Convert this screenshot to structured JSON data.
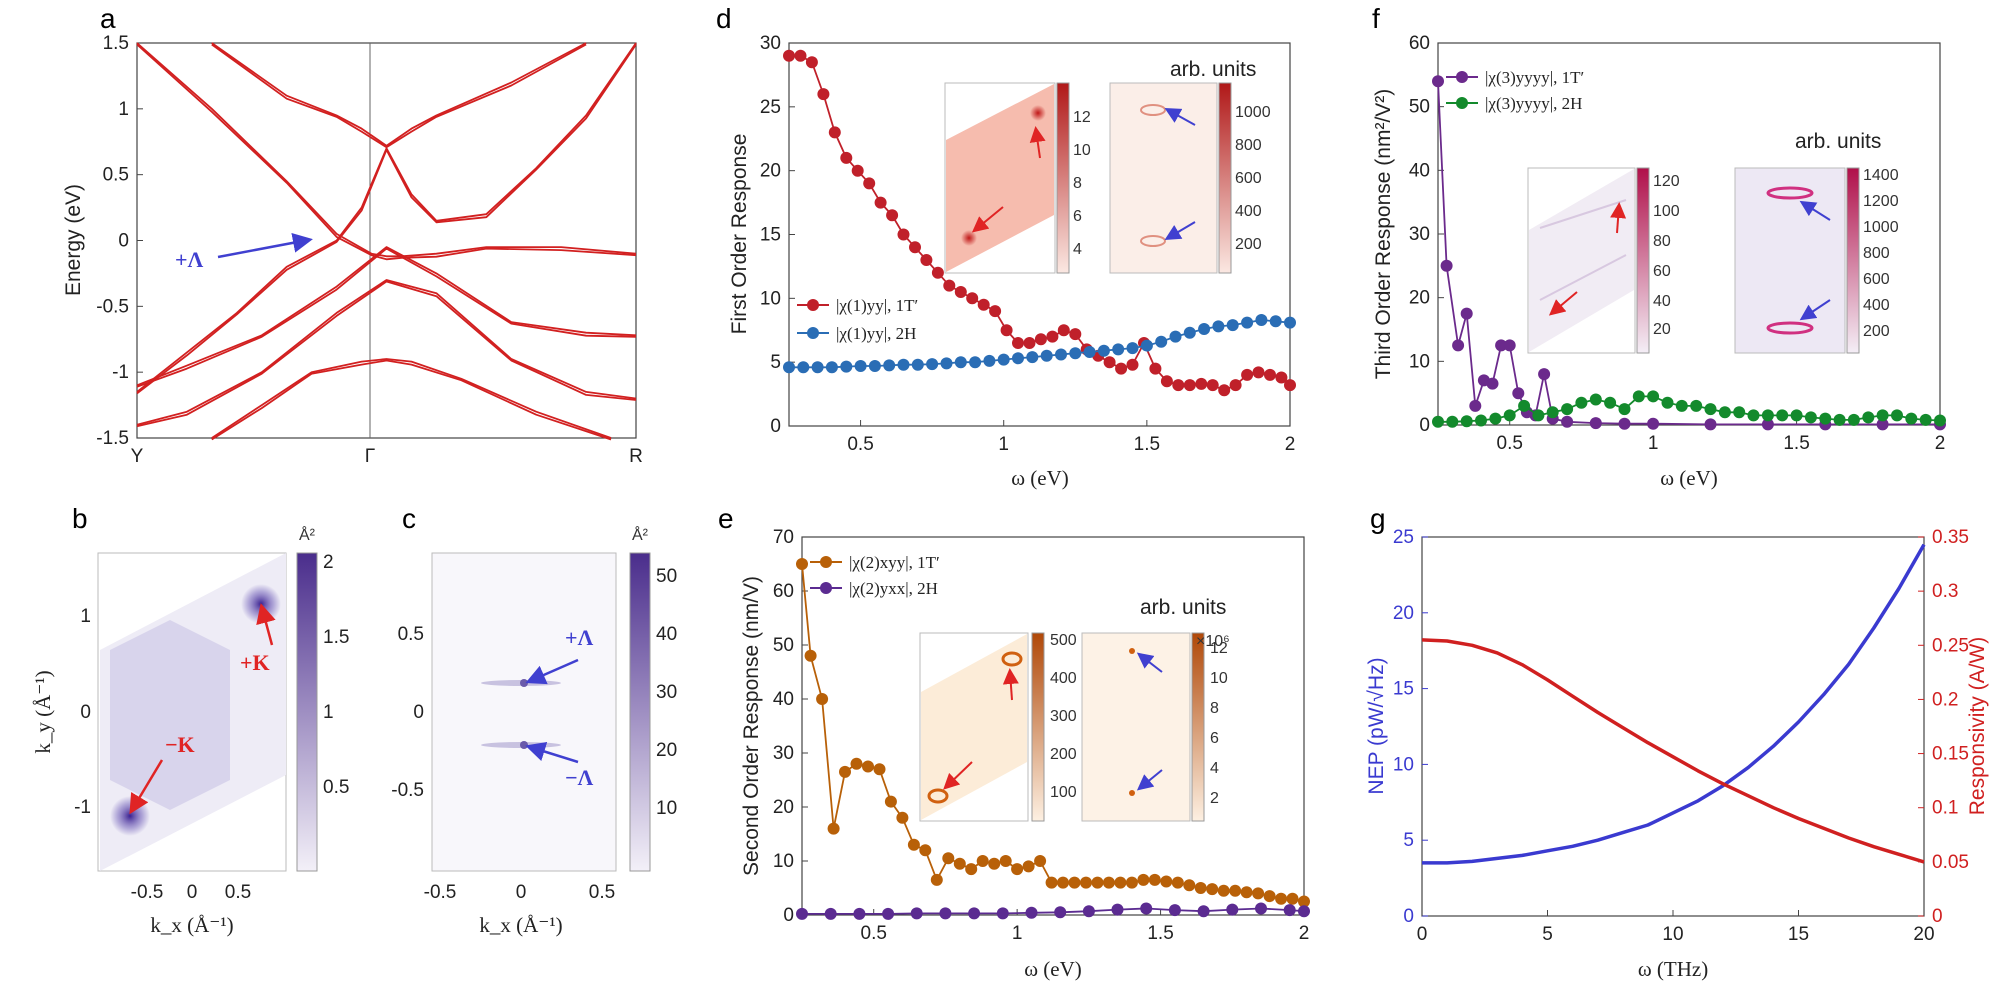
{
  "chart_data": [
    {
      "id": "a",
      "type": "line",
      "panel_label": "a",
      "ylabel": "Energy (eV)",
      "ylim": [
        -1.5,
        1.5
      ],
      "yticks": [
        "1.5",
        "1",
        "0.5",
        "0",
        "-0.5",
        "-1",
        "-1.5"
      ],
      "xtick_labels": [
        "Y",
        "Γ",
        "R"
      ],
      "annotation": "+Λ",
      "series": [
        {
          "name": "band1",
          "x": [
            0.0,
            0.1,
            0.25,
            0.4,
            0.5,
            0.6,
            0.75,
            0.9,
            1.0
          ],
          "y": [
            -1.1,
            -0.95,
            -0.72,
            -0.35,
            -0.05,
            -0.25,
            -0.62,
            -0.7,
            -0.72
          ]
        },
        {
          "name": "band2",
          "x": [
            0.0,
            0.1,
            0.25,
            0.4,
            0.5,
            0.6,
            0.75,
            0.9,
            1.0
          ],
          "y": [
            -1.4,
            -1.3,
            -1.0,
            -0.55,
            -0.3,
            -0.4,
            -0.9,
            -1.15,
            -1.2
          ]
        },
        {
          "name": "band3",
          "x": [
            0.15,
            0.25,
            0.35,
            0.45,
            0.5,
            0.55,
            0.65,
            0.8,
            0.95
          ],
          "y": [
            -1.5,
            -1.25,
            -1.0,
            -0.92,
            -0.9,
            -0.92,
            -1.05,
            -1.3,
            -1.5
          ]
        },
        {
          "name": "band4",
          "x": [
            0.0,
            0.15,
            0.3,
            0.4,
            0.47,
            0.5,
            0.53,
            0.6,
            0.7,
            0.85,
            1.0
          ],
          "y": [
            1.5,
            1.0,
            0.45,
            0.05,
            -0.1,
            -0.12,
            -0.12,
            -0.1,
            -0.05,
            -0.05,
            -0.1
          ]
        },
        {
          "name": "band5",
          "x": [
            0.0,
            0.1,
            0.2,
            0.3,
            0.4,
            0.45,
            0.5,
            0.55,
            0.6,
            0.7,
            0.8,
            0.9,
            1.0
          ],
          "y": [
            -1.15,
            -0.85,
            -0.55,
            -0.2,
            0.0,
            0.25,
            0.7,
            0.35,
            0.15,
            0.2,
            0.55,
            0.95,
            1.5
          ]
        },
        {
          "name": "band6",
          "x": [
            0.15,
            0.3,
            0.4,
            0.45,
            0.5,
            0.55,
            0.6,
            0.75,
            0.9
          ],
          "y": [
            1.5,
            1.1,
            0.95,
            0.85,
            0.72,
            0.85,
            0.95,
            1.2,
            1.5
          ]
        }
      ]
    },
    {
      "id": "b",
      "type": "heatmap",
      "panel_label": "b",
      "xlabel": "k_x (Å⁻¹)",
      "ylabel": "k_y (Å⁻¹)",
      "xticks": [
        "-0.5",
        "0",
        "0.5"
      ],
      "yticks": [
        "1",
        "0",
        "-1"
      ],
      "colorbar_unit": "Å²",
      "colorbar_ticks": [
        "2",
        "1.5",
        "1",
        "0.5"
      ],
      "annotations": [
        "+K",
        "−K"
      ]
    },
    {
      "id": "c",
      "type": "heatmap",
      "panel_label": "c",
      "xlabel": "k_x (Å⁻¹)",
      "xticks": [
        "-0.5",
        "0",
        "0.5"
      ],
      "yticks": [
        "0.5",
        "0",
        "-0.5"
      ],
      "colorbar_unit": "Å²",
      "colorbar_ticks": [
        "50",
        "40",
        "30",
        "20",
        "10"
      ],
      "annotations": [
        "+Λ",
        "−Λ"
      ]
    },
    {
      "id": "d",
      "type": "line",
      "panel_label": "d",
      "xlabel": "ω (eV)",
      "ylabel": "First Order Response",
      "xlim": [
        0.25,
        2.0
      ],
      "ylim": [
        0,
        30
      ],
      "xticks": [
        "0.5",
        "1",
        "1.5",
        "2"
      ],
      "yticks": [
        "30",
        "25",
        "20",
        "15",
        "10",
        "5",
        "0"
      ],
      "inset_header": "arb. units",
      "inset1_ticks": [
        "12",
        "10",
        "8",
        "6",
        "4"
      ],
      "inset2_ticks": [
        "1000",
        "800",
        "600",
        "400",
        "200"
      ],
      "series": [
        {
          "name": "|χ(1)yy|, 1T′",
          "color": "#c0202a",
          "x": [
            0.25,
            0.29,
            0.33,
            0.37,
            0.41,
            0.45,
            0.49,
            0.53,
            0.57,
            0.61,
            0.65,
            0.69,
            0.73,
            0.77,
            0.81,
            0.85,
            0.89,
            0.93,
            0.97,
            1.01,
            1.05,
            1.09,
            1.13,
            1.17,
            1.21,
            1.25,
            1.29,
            1.33,
            1.37,
            1.41,
            1.45,
            1.49,
            1.53,
            1.57,
            1.61,
            1.65,
            1.69,
            1.73,
            1.77,
            1.81,
            1.85,
            1.89,
            1.93,
            1.97,
            2.0
          ],
          "y": [
            29,
            29,
            28.5,
            26,
            23,
            21,
            20,
            19,
            17.5,
            16.5,
            15,
            14,
            13,
            12,
            11,
            10.5,
            10,
            9.5,
            9,
            7.5,
            6.5,
            6.5,
            6.8,
            7,
            7.5,
            7.2,
            6,
            5.5,
            5,
            4.5,
            4.8,
            6.5,
            4.5,
            3.5,
            3.2,
            3.2,
            3.3,
            3.2,
            2.8,
            3.2,
            4,
            4.2,
            4,
            3.8,
            3.2
          ]
        },
        {
          "name": "|χ(1)yy|, 2H",
          "color": "#2a6db5",
          "x": [
            0.25,
            0.3,
            0.35,
            0.4,
            0.45,
            0.5,
            0.55,
            0.6,
            0.65,
            0.7,
            0.75,
            0.8,
            0.85,
            0.9,
            0.95,
            1.0,
            1.05,
            1.1,
            1.15,
            1.2,
            1.25,
            1.3,
            1.35,
            1.4,
            1.45,
            1.5,
            1.55,
            1.6,
            1.65,
            1.7,
            1.75,
            1.8,
            1.85,
            1.9,
            1.95,
            2.0
          ],
          "y": [
            4.6,
            4.6,
            4.6,
            4.6,
            4.65,
            4.7,
            4.7,
            4.75,
            4.8,
            4.8,
            4.85,
            4.9,
            5.0,
            5.0,
            5.1,
            5.2,
            5.3,
            5.4,
            5.5,
            5.6,
            5.7,
            5.8,
            5.9,
            6.0,
            6.1,
            6.3,
            6.6,
            7.0,
            7.3,
            7.6,
            7.8,
            7.9,
            8.1,
            8.3,
            8.2,
            8.1
          ]
        }
      ]
    },
    {
      "id": "e",
      "type": "line",
      "panel_label": "e",
      "xlabel": "ω (eV)",
      "ylabel": "Second Order Response (nm/V)",
      "xlim": [
        0.25,
        2.0
      ],
      "ylim": [
        0,
        70
      ],
      "xticks": [
        "0.5",
        "1",
        "1.5",
        "2"
      ],
      "yticks": [
        "70",
        "60",
        "50",
        "40",
        "30",
        "20",
        "10",
        "0"
      ],
      "inset_header": "arb. units",
      "inset_exponent": "×10⁶",
      "inset1_ticks": [
        "500",
        "400",
        "300",
        "200",
        "100"
      ],
      "inset2_ticks": [
        "12",
        "10",
        "8",
        "6",
        "4",
        "2"
      ],
      "series": [
        {
          "name": "|χ(2)xyy|, 1T′",
          "color": "#b86008",
          "x": [
            0.25,
            0.28,
            0.32,
            0.36,
            0.4,
            0.44,
            0.48,
            0.52,
            0.56,
            0.6,
            0.64,
            0.68,
            0.72,
            0.76,
            0.8,
            0.84,
            0.88,
            0.92,
            0.96,
            1.0,
            1.04,
            1.08,
            1.12,
            1.16,
            1.2,
            1.24,
            1.28,
            1.32,
            1.36,
            1.4,
            1.44,
            1.48,
            1.52,
            1.56,
            1.6,
            1.64,
            1.68,
            1.72,
            1.76,
            1.8,
            1.84,
            1.88,
            1.92,
            1.96,
            2.0
          ],
          "y": [
            65,
            48,
            40,
            16,
            26.5,
            28,
            27.5,
            27,
            21,
            18,
            13,
            12,
            6.5,
            10.5,
            9.5,
            8.5,
            10,
            9.5,
            10,
            8.5,
            9,
            10,
            6,
            6,
            6,
            6,
            6,
            6,
            6,
            6,
            6.5,
            6.5,
            6.2,
            6,
            5.5,
            5,
            4.8,
            4.5,
            4.5,
            4.2,
            4,
            3.5,
            3,
            3,
            2.5
          ]
        },
        {
          "name": "|χ(2)yxx|, 2H",
          "color": "#5b2b91",
          "x": [
            0.25,
            0.35,
            0.45,
            0.55,
            0.65,
            0.75,
            0.85,
            0.95,
            1.05,
            1.15,
            1.25,
            1.35,
            1.45,
            1.55,
            1.65,
            1.75,
            1.85,
            1.95,
            2.0
          ],
          "y": [
            0.2,
            0.2,
            0.2,
            0.2,
            0.3,
            0.3,
            0.3,
            0.3,
            0.4,
            0.5,
            0.7,
            1.0,
            1.2,
            0.9,
            0.7,
            1.0,
            1.2,
            0.9,
            0.7
          ]
        }
      ]
    },
    {
      "id": "f",
      "type": "line",
      "panel_label": "f",
      "xlabel": "ω (eV)",
      "ylabel": "Third Order Response (nm²/V²)",
      "xlim": [
        0.25,
        2.0
      ],
      "ylim": [
        0,
        60
      ],
      "xticks": [
        "0.5",
        "1",
        "1.5",
        "2"
      ],
      "yticks": [
        "60",
        "50",
        "40",
        "30",
        "20",
        "10",
        "0"
      ],
      "inset_header": "arb. units",
      "inset1_ticks": [
        "120",
        "100",
        "80",
        "60",
        "40",
        "20"
      ],
      "inset2_ticks": [
        "1400",
        "1200",
        "1000",
        "800",
        "600",
        "400",
        "200"
      ],
      "series": [
        {
          "name": "|χ(3)yyyy|, 1T′",
          "color": "#6b2a8c",
          "x": [
            0.25,
            0.28,
            0.32,
            0.35,
            0.38,
            0.41,
            0.44,
            0.47,
            0.5,
            0.53,
            0.56,
            0.59,
            0.62,
            0.65,
            0.7,
            0.8,
            0.9,
            1.0,
            1.2,
            1.4,
            1.6,
            1.8,
            2.0
          ],
          "y": [
            54,
            25,
            12.5,
            17.5,
            3,
            7,
            6.5,
            12.5,
            12.5,
            5,
            2,
            1.5,
            8,
            1,
            0.5,
            0.3,
            0.2,
            0.2,
            0.1,
            0.1,
            0.1,
            0.1,
            0.1
          ]
        },
        {
          "name": "|χ(3)yyyy|, 2H",
          "color": "#138a2c",
          "x": [
            0.25,
            0.3,
            0.35,
            0.4,
            0.45,
            0.5,
            0.55,
            0.6,
            0.65,
            0.7,
            0.75,
            0.8,
            0.85,
            0.9,
            0.95,
            1.0,
            1.05,
            1.1,
            1.15,
            1.2,
            1.25,
            1.3,
            1.35,
            1.4,
            1.45,
            1.5,
            1.55,
            1.6,
            1.65,
            1.7,
            1.75,
            1.8,
            1.85,
            1.9,
            1.95,
            2.0
          ],
          "y": [
            0.5,
            0.5,
            0.6,
            0.7,
            1.0,
            1.5,
            3.0,
            1.5,
            2.0,
            2.5,
            3.5,
            4.0,
            3.5,
            2.5,
            4.5,
            4.5,
            3.5,
            3.0,
            3.0,
            2.5,
            2.0,
            2.0,
            1.5,
            1.5,
            1.5,
            1.5,
            1.2,
            1.0,
            0.8,
            0.8,
            1.2,
            1.5,
            1.5,
            1.0,
            0.8,
            0.7
          ]
        }
      ]
    },
    {
      "id": "g",
      "type": "line",
      "panel_label": "g",
      "xlabel": "ω (THz)",
      "ylabel_left": "NEP (pW/√Hz)",
      "ylabel_right": "Responsivity (A/W)",
      "xlim": [
        0,
        20
      ],
      "ylim_left": [
        0,
        25
      ],
      "ylim_right": [
        0,
        0.35
      ],
      "xticks": [
        "0",
        "5",
        "10",
        "15",
        "20"
      ],
      "yticks_left": [
        "25",
        "20",
        "15",
        "10",
        "5",
        "0"
      ],
      "yticks_right": [
        "0.35",
        "0.3",
        "0.25",
        "0.2",
        "0.15",
        "0.1",
        "0.05",
        "0"
      ],
      "series": [
        {
          "name": "NEP",
          "axis": "left",
          "color": "#3a3ad0",
          "x": [
            0,
            1,
            2,
            3,
            4,
            5,
            6,
            7,
            8,
            9,
            10,
            11,
            12,
            13,
            14,
            15,
            16,
            17,
            18,
            19,
            20
          ],
          "y": [
            3.5,
            3.5,
            3.6,
            3.8,
            4.0,
            4.3,
            4.6,
            5.0,
            5.5,
            6.0,
            6.8,
            7.6,
            8.6,
            9.8,
            11.2,
            12.8,
            14.6,
            16.6,
            19.0,
            21.6,
            24.5
          ]
        },
        {
          "name": "Responsivity",
          "axis": "right",
          "color": "#d02020",
          "x": [
            0,
            1,
            2,
            3,
            4,
            5,
            6,
            7,
            8,
            9,
            10,
            11,
            12,
            13,
            14,
            15,
            16,
            17,
            18,
            19,
            20
          ],
          "y": [
            0.255,
            0.254,
            0.25,
            0.243,
            0.232,
            0.218,
            0.203,
            0.188,
            0.174,
            0.16,
            0.147,
            0.134,
            0.122,
            0.111,
            0.1,
            0.09,
            0.081,
            0.072,
            0.064,
            0.057,
            0.05
          ]
        }
      ]
    }
  ]
}
